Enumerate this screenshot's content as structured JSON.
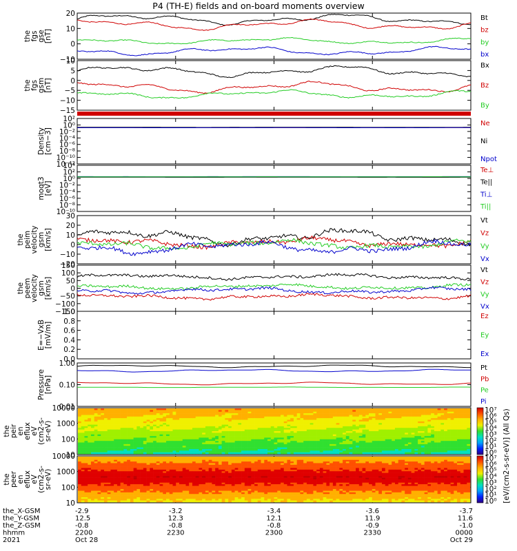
{
  "title": "P4 (TH-E) fields and on-board moments overview",
  "colors": {
    "black": "#000000",
    "red": "#d00000",
    "green": "#22cc22",
    "blue": "#0000cc"
  },
  "time_ticks": [
    "2200",
    "2230",
    "2300",
    "2330",
    "0000"
  ],
  "ephemeris": {
    "labels": [
      "the_X-GSM",
      "the_Y-GSM",
      "the_Z-GSM",
      "hhmm",
      "2021"
    ],
    "rows": [
      [
        "-2.9",
        "-3.2",
        "-3.4",
        "-3.6",
        "-3.7"
      ],
      [
        "12.5",
        "12.3",
        "12.1",
        "11.9",
        "11.6"
      ],
      [
        "-0.8",
        "-0.8",
        "-0.8",
        "-0.9",
        "-1.0"
      ],
      [
        "2200",
        "2230",
        "2300",
        "2330",
        "0000"
      ],
      [
        "Oct 28",
        "",
        "",
        "",
        "Oct 29"
      ]
    ]
  },
  "chart_data": [
    {
      "type": "line",
      "id": "fgs_gse",
      "ylabel": [
        "the",
        "fgs",
        "gse",
        "[nT]"
      ],
      "ylim": [
        -12,
        22
      ],
      "yticks": [
        "20",
        "10",
        "0",
        "−10"
      ],
      "series": [
        {
          "name": "Bt",
          "color": "black",
          "base": 17.5,
          "amp": 2.5,
          "noise": 0.3
        },
        {
          "name": "bz",
          "color": "red",
          "base": 13.5,
          "amp": 2.5,
          "noise": 0.3
        },
        {
          "name": "by",
          "color": "green",
          "base": 1.5,
          "amp": 1.5,
          "noise": 0.3
        },
        {
          "name": "bx",
          "color": "blue",
          "base": -6,
          "amp": 2,
          "noise": 0.3
        }
      ]
    },
    {
      "type": "line",
      "id": "fgs_gsm",
      "ylabel": [
        "the",
        "fgs",
        "gsm",
        "[nT]"
      ],
      "ylim": [
        -18,
        10
      ],
      "yticks": [
        "10",
        "5",
        "0",
        "−5",
        "−10",
        "−15"
      ],
      "series": [
        {
          "name": "Bx",
          "color": "black",
          "base": 4,
          "amp": 2,
          "noise": 0.3
        },
        {
          "name": "Bz",
          "color": "red",
          "base": -5,
          "amp": 2,
          "noise": 0.3
        },
        {
          "name": "By",
          "color": "green",
          "base": -9,
          "amp": 1.5,
          "noise": 0.3
        }
      ]
    },
    {
      "type": "quality-bar",
      "id": "flag",
      "color": "red"
    },
    {
      "type": "line",
      "id": "density",
      "yscale": "log",
      "ylabel": [
        "Density",
        "[cm−3]"
      ],
      "ylim": [
        1e-12,
        1000.0
      ],
      "yticks": [
        "10²",
        "10⁰",
        "10⁻²",
        "10⁻⁴",
        "10⁻⁶",
        "10⁻⁸",
        "10⁻¹⁰",
        "10⁻¹²"
      ],
      "series": [
        {
          "name": "Ne",
          "color": "red",
          "base": 1.0
        },
        {
          "name": "Ni",
          "color": "black",
          "base": 1.2
        },
        {
          "name": "Npot",
          "color": "blue",
          "base": 0.9
        }
      ]
    },
    {
      "type": "line",
      "id": "temp",
      "yscale": "log",
      "ylabel": [
        "moqt3",
        "[eV]"
      ],
      "ylim": [
        1e-10,
        10000.0
      ],
      "yticks": [
        "10⁴",
        "10²",
        "10⁰",
        "10⁻²",
        "10⁻⁴",
        "10⁻⁶",
        "10⁻⁸",
        "10⁻¹⁰"
      ],
      "series": [
        {
          "name": "Te⊥",
          "color": "red",
          "base": 3.0
        },
        {
          "name": "Te||",
          "color": "black",
          "base": 2.4
        },
        {
          "name": "Ti⊥",
          "color": "blue",
          "base": 3.6
        },
        {
          "name": "Ti||",
          "color": "green",
          "base": 3.2
        }
      ]
    },
    {
      "type": "line",
      "id": "peim_vel",
      "ylabel": [
        "the",
        "peim",
        "velocity",
        "gsm",
        "[km/s]"
      ],
      "ylim": [
        -20,
        30
      ],
      "yticks": [
        "30",
        "20",
        "10",
        "0",
        "−10",
        "−20"
      ],
      "series": [
        {
          "name": "Vt",
          "color": "black",
          "base": 8,
          "amp": 5,
          "noise": 2
        },
        {
          "name": "Vz",
          "color": "red",
          "base": 2,
          "amp": 3,
          "noise": 2
        },
        {
          "name": "Vy",
          "color": "green",
          "base": 0,
          "amp": 3,
          "noise": 2
        },
        {
          "name": "Vx",
          "color": "blue",
          "base": -3,
          "amp": 4,
          "noise": 2
        }
      ]
    },
    {
      "type": "line",
      "id": "peem_vel",
      "ylabel": [
        "the",
        "peem",
        "velocity",
        "gsm",
        "[km/s]"
      ],
      "ylim": [
        -150,
        150
      ],
      "yticks": [
        "150",
        "100",
        "50",
        "0",
        "−50",
        "−100",
        "−150"
      ],
      "series": [
        {
          "name": "Vt",
          "color": "black",
          "base": 75,
          "amp": 10,
          "noise": 8
        },
        {
          "name": "Vz",
          "color": "red",
          "base": -55,
          "amp": 10,
          "noise": 8
        },
        {
          "name": "Vy",
          "color": "green",
          "base": 10,
          "amp": 10,
          "noise": 8
        },
        {
          "name": "Vx",
          "color": "blue",
          "base": -15,
          "amp": 12,
          "noise": 8
        }
      ]
    },
    {
      "type": "empty",
      "id": "efield",
      "ylabel": [
        "E=−VxB",
        "[mV/m]"
      ],
      "ylim": [
        0,
        1
      ],
      "yticks": [
        "1.0",
        "0.8",
        "0.6",
        "0.4",
        "0.2",
        "0.0"
      ],
      "series": [
        {
          "name": "Ez",
          "color": "red"
        },
        {
          "name": "Ey",
          "color": "green"
        },
        {
          "name": "Ex",
          "color": "blue"
        }
      ]
    },
    {
      "type": "line",
      "id": "pressure",
      "yscale": "log",
      "ylabel": [
        "Pressure",
        "[nPa]"
      ],
      "ylim": [
        0.01,
        1.3
      ],
      "yticks": [
        "1.00",
        "0.10",
        "0.01"
      ],
      "series": [
        {
          "name": "Pt",
          "color": "black",
          "base": 0.9,
          "amp": 0.05
        },
        {
          "name": "Pb",
          "color": "red",
          "base": 0.13,
          "amp": 0.05
        },
        {
          "name": "Pe",
          "color": "green",
          "base": 0.085,
          "amp": 0.01
        },
        {
          "name": "Pi",
          "color": "blue",
          "base": 0.55,
          "amp": 0.05
        }
      ]
    },
    {
      "type": "heatmap",
      "id": "peir",
      "ylabel": [
        "the",
        "peir",
        "en",
        "eflux",
        "eV",
        "(cm2-s-",
        "sr-eV)"
      ],
      "ylim": [
        5,
        20000
      ],
      "yticks": [
        "10000",
        "1000",
        "100",
        "10"
      ]
    },
    {
      "type": "heatmap",
      "id": "peer",
      "ylabel": [
        "the",
        "peer",
        "en",
        "eflux",
        "eV",
        "(cm2-s-",
        "sr-eV)"
      ],
      "ylim": [
        5,
        20000
      ],
      "yticks": [
        "10000",
        "1000",
        "100",
        "10"
      ]
    }
  ],
  "colorbars": [
    {
      "ticks": [
        "10⁷",
        "10⁶",
        "10⁵",
        "10⁴",
        "10³",
        "10²",
        "10¹",
        "10⁰"
      ],
      "label": "[eV/(cm2-s-sr-eV)] (All Qs)"
    },
    {
      "ticks": [
        "10⁷",
        "10⁶",
        "10⁵",
        "10⁴",
        "10³",
        "10²",
        "10¹",
        "10⁰"
      ],
      "label": "[eV/(cm2-s-sr-eV)] (All Qs)"
    }
  ]
}
